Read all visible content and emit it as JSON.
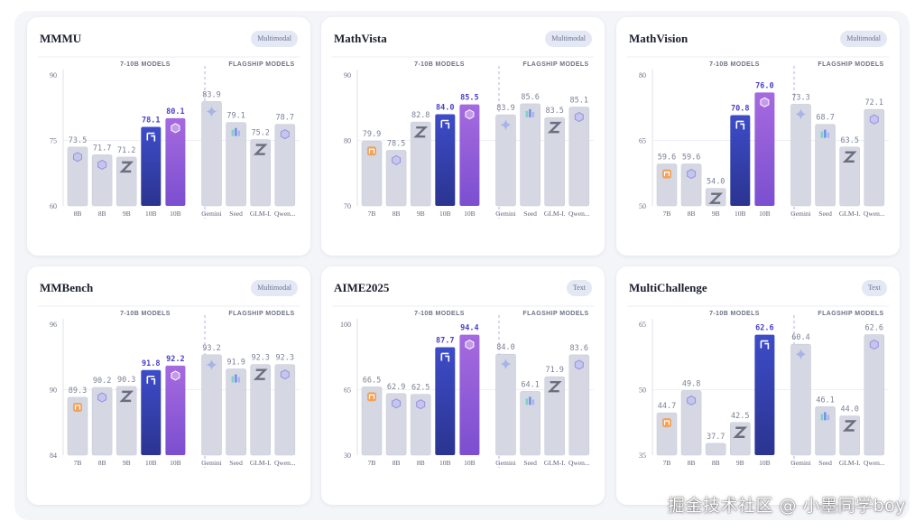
{
  "chart_data": [
    {
      "type": "bar",
      "title": "MMMU",
      "badge": "Multimodal",
      "group_labels": [
        "7-10B MODELS",
        "FLAGSHIP MODELS"
      ],
      "categories": [
        "8B",
        "8B",
        "9B",
        "10B",
        "10B",
        "Gemini",
        "Seed",
        "GLM-I.",
        "Qwen..."
      ],
      "groups": [
        "small",
        "small",
        "small",
        "small",
        "small",
        "flagship",
        "flagship",
        "flagship",
        "flagship"
      ],
      "values": [
        73.5,
        71.7,
        71.2,
        78.1,
        80.1,
        83.9,
        79.1,
        75.2,
        78.7
      ],
      "value_labels": [
        "73.5",
        "71.7",
        "71.2",
        "78.1",
        "80.1",
        "83.9",
        "79.1",
        "75.2",
        "78.7"
      ],
      "styles": [
        "gray",
        "gray",
        "gray",
        "blue",
        "purple",
        "gray",
        "gray",
        "gray",
        "gray"
      ],
      "icons": [
        "qwen-icon",
        "qwen-icon",
        "zhipu-icon",
        "glm-icon",
        "qwen-icon",
        "gemini-icon",
        "seed-icon",
        "zhipu-icon",
        "qwen-icon"
      ],
      "yticks": [
        "90",
        "75",
        "60"
      ],
      "ylim": [
        60,
        90
      ]
    },
    {
      "type": "bar",
      "title": "MathVista",
      "badge": "Multimodal",
      "group_labels": [
        "7-10B MODELS",
        "FLAGSHIP MODELS"
      ],
      "categories": [
        "7B",
        "8B",
        "9B",
        "10B",
        "10B",
        "Gemini",
        "Seed",
        "GLM-I.",
        "Qwen..."
      ],
      "groups": [
        "small",
        "small",
        "small",
        "small",
        "small",
        "flagship",
        "flagship",
        "flagship",
        "flagship"
      ],
      "values": [
        79.9,
        78.5,
        82.8,
        84.0,
        85.5,
        83.9,
        85.6,
        83.5,
        85.1
      ],
      "value_labels": [
        "79.9",
        "78.5",
        "82.8",
        "84.0",
        "85.5",
        "83.9",
        "85.6",
        "83.5",
        "85.1"
      ],
      "styles": [
        "gray",
        "gray",
        "gray",
        "blue",
        "purple",
        "gray",
        "gray",
        "gray",
        "gray"
      ],
      "icons": [
        "mi-icon",
        "qwen-icon",
        "zhipu-icon",
        "glm-icon",
        "qwen-icon",
        "gemini-icon",
        "seed-icon",
        "zhipu-icon",
        "qwen-icon"
      ],
      "yticks": [
        "90",
        "80",
        "70"
      ],
      "ylim": [
        70,
        90
      ]
    },
    {
      "type": "bar",
      "title": "MathVision",
      "badge": "Multimodal",
      "group_labels": [
        "7-10B MODELS",
        "FLAGSHIP MODELS"
      ],
      "categories": [
        "7B",
        "8B",
        "9B",
        "10B",
        "10B",
        "Gemini",
        "Seed",
        "GLM-I.",
        "Qwen..."
      ],
      "groups": [
        "small",
        "small",
        "small",
        "small",
        "small",
        "flagship",
        "flagship",
        "flagship",
        "flagship"
      ],
      "values": [
        59.6,
        59.6,
        54.0,
        70.8,
        76.0,
        73.3,
        68.7,
        63.5,
        72.1
      ],
      "value_labels": [
        "59.6",
        "59.6",
        "54.0",
        "70.8",
        "76.0",
        "73.3",
        "68.7",
        "63.5",
        "72.1"
      ],
      "styles": [
        "gray",
        "gray",
        "gray",
        "blue",
        "purple",
        "gray",
        "gray",
        "gray",
        "gray"
      ],
      "icons": [
        "mi-icon",
        "qwen-icon",
        "zhipu-icon",
        "glm-icon",
        "qwen-icon",
        "gemini-icon",
        "seed-icon",
        "zhipu-icon",
        "qwen-icon"
      ],
      "yticks": [
        "80",
        "65",
        "50"
      ],
      "ylim": [
        50,
        80
      ]
    },
    {
      "type": "bar",
      "title": "MMBench",
      "badge": "Multimodal",
      "group_labels": [
        "7-10B MODELS",
        "FLAGSHIP MODELS"
      ],
      "categories": [
        "7B",
        "8B",
        "9B",
        "10B",
        "10B",
        "Gemini",
        "Seed",
        "GLM-I.",
        "Qwen..."
      ],
      "groups": [
        "small",
        "small",
        "small",
        "small",
        "small",
        "flagship",
        "flagship",
        "flagship",
        "flagship"
      ],
      "values": [
        89.3,
        90.2,
        90.3,
        91.8,
        92.2,
        93.2,
        91.9,
        92.3,
        92.3
      ],
      "value_labels": [
        "89.3",
        "90.2",
        "90.3",
        "91.8",
        "92.2",
        "93.2",
        "91.9",
        "92.3",
        "92.3"
      ],
      "styles": [
        "gray",
        "gray",
        "gray",
        "blue",
        "purple",
        "gray",
        "gray",
        "gray",
        "gray"
      ],
      "icons": [
        "mi-icon",
        "qwen-icon",
        "zhipu-icon",
        "glm-icon",
        "qwen-icon",
        "gemini-icon",
        "seed-icon",
        "zhipu-icon",
        "qwen-icon"
      ],
      "yticks": [
        "96",
        "90",
        "84"
      ],
      "ylim": [
        84,
        96
      ]
    },
    {
      "type": "bar",
      "title": "AIME2025",
      "badge": "Text",
      "group_labels": [
        "7-10B MODELS",
        "FLAGSHIP MODELS"
      ],
      "categories": [
        "7B",
        "8B",
        "8B",
        "10B",
        "10B",
        "Gemini",
        "Seed",
        "GLM-I.",
        "Qwen..."
      ],
      "groups": [
        "small",
        "small",
        "small",
        "small",
        "small",
        "flagship",
        "flagship",
        "flagship",
        "flagship"
      ],
      "values": [
        66.5,
        62.9,
        62.5,
        87.7,
        94.4,
        84.0,
        64.1,
        71.9,
        83.6
      ],
      "value_labels": [
        "66.5",
        "62.9",
        "62.5",
        "87.7",
        "94.4",
        "84.0",
        "64.1",
        "71.9",
        "83.6"
      ],
      "styles": [
        "gray",
        "gray",
        "gray",
        "blue",
        "purple",
        "gray",
        "gray",
        "gray",
        "gray"
      ],
      "icons": [
        "mi-icon",
        "qwen-icon",
        "qwen-icon",
        "glm-icon",
        "qwen-icon",
        "gemini-icon",
        "seed-icon",
        "zhipu-icon",
        "qwen-icon"
      ],
      "yticks": [
        "100",
        "65",
        "30"
      ],
      "ylim": [
        30,
        100
      ]
    },
    {
      "type": "bar",
      "title": "MultiChallenge",
      "badge": "Text",
      "group_labels": [
        "7-10B MODELS",
        "FLAGSHIP MODELS"
      ],
      "categories": [
        "7B",
        "8B",
        "8B",
        "9B",
        "10B",
        "Gemini",
        "Seed",
        "GLM-I.",
        "Qwen..."
      ],
      "groups": [
        "small",
        "small",
        "small",
        "small",
        "small",
        "flagship",
        "flagship",
        "flagship",
        "flagship"
      ],
      "values": [
        44.7,
        49.8,
        37.7,
        42.5,
        62.6,
        60.4,
        46.1,
        44.0,
        62.6
      ],
      "value_labels": [
        "44.7",
        "49.8",
        "37.7",
        "42.5",
        "62.6",
        "60.4",
        "46.1",
        "44.0",
        "62.6"
      ],
      "styles": [
        "gray",
        "gray",
        "gray",
        "gray",
        "blue",
        "gray",
        "gray",
        "gray",
        "gray"
      ],
      "icons": [
        "mi-icon",
        "qwen-icon",
        "none",
        "zhipu-icon",
        "glm-icon",
        "gemini-icon",
        "seed-icon",
        "zhipu-icon",
        "qwen-icon"
      ],
      "yticks": [
        "65",
        "50",
        "35"
      ],
      "ylim": [
        35,
        65
      ]
    }
  ],
  "watermark": "掘金技术社区 @ 小墨同学boy",
  "colors": {
    "bar_gray": "#d5d8e2",
    "bar_blue_top": "#3d4cc8",
    "bar_blue_bottom": "#2b3490",
    "bar_purple_top": "#a66adf",
    "bar_purple_bottom": "#7b4fd0",
    "label_gray": "#7c8196",
    "label_highlight": "#4a3fc7"
  }
}
